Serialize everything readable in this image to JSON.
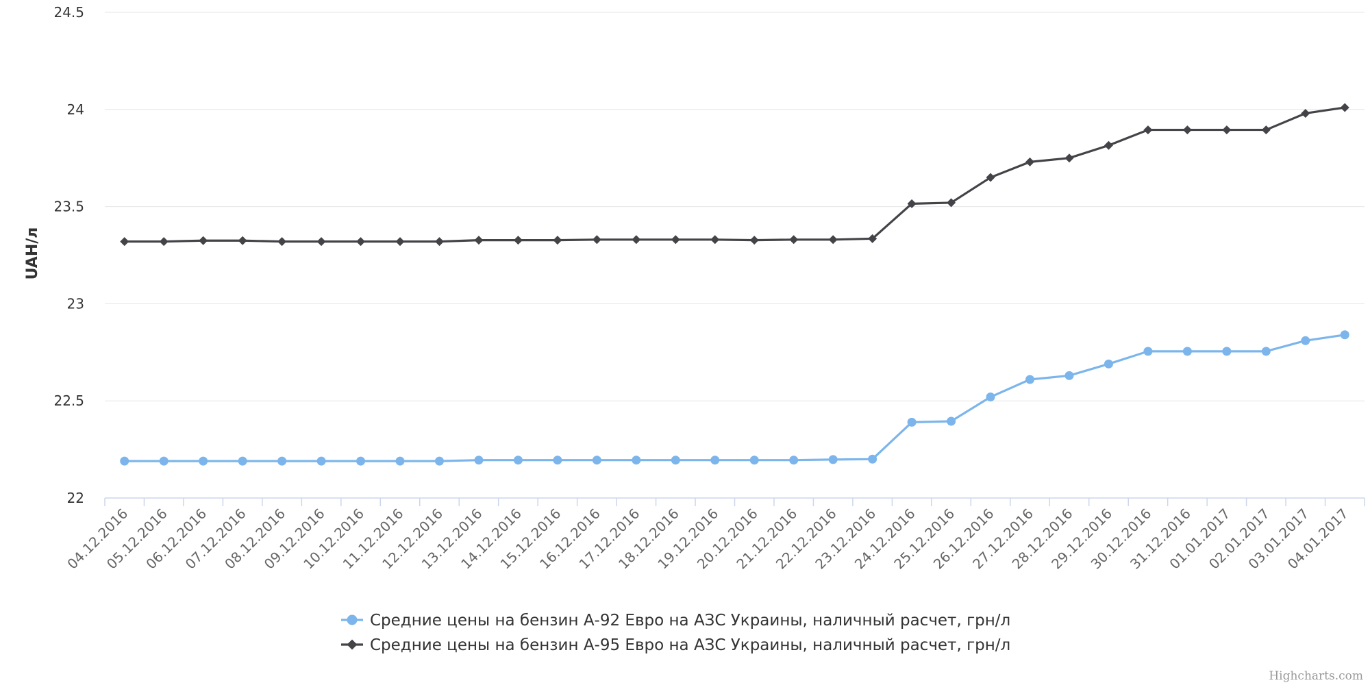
{
  "chart_data": {
    "type": "line",
    "title": "",
    "xlabel": "",
    "ylabel": "UAH/л",
    "ylim": [
      22,
      24.5
    ],
    "yticks": [
      "22",
      "22.5",
      "23",
      "23.5",
      "24",
      "24.5"
    ],
    "grid": true,
    "legend_position": "bottom-center",
    "categories": [
      "04.12.2016",
      "05.12.2016",
      "06.12.2016",
      "07.12.2016",
      "08.12.2016",
      "09.12.2016",
      "10.12.2016",
      "11.12.2016",
      "12.12.2016",
      "13.12.2016",
      "14.12.2016",
      "15.12.2016",
      "16.12.2016",
      "17.12.2016",
      "18.12.2016",
      "19.12.2016",
      "20.12.2016",
      "21.12.2016",
      "22.12.2016",
      "23.12.2016",
      "24.12.2016",
      "25.12.2016",
      "26.12.2016",
      "27.12.2016",
      "28.12.2016",
      "29.12.2016",
      "30.12.2016",
      "31.12.2016",
      "01.01.2017",
      "02.01.2017",
      "03.01.2017",
      "04.01.2017"
    ],
    "series": [
      {
        "name": "Средние цены на бензин А-92 Евро на АЗС Украины, наличный расчет, грн/л",
        "color": "#7cb5ec",
        "marker": "circle",
        "values": [
          22.19,
          22.19,
          22.19,
          22.19,
          22.19,
          22.19,
          22.19,
          22.19,
          22.19,
          22.195,
          22.195,
          22.195,
          22.195,
          22.195,
          22.195,
          22.195,
          22.195,
          22.195,
          22.198,
          22.2,
          22.39,
          22.395,
          22.52,
          22.61,
          22.63,
          22.69,
          22.755,
          22.755,
          22.755,
          22.755,
          22.81,
          22.84
        ]
      },
      {
        "name": "Средние цены на бензин А-95 Евро на АЗС Украины, наличный расчет, грн/л",
        "color": "#434348",
        "marker": "diamond",
        "values": [
          23.32,
          23.32,
          23.325,
          23.325,
          23.32,
          23.32,
          23.32,
          23.32,
          23.32,
          23.327,
          23.327,
          23.327,
          23.33,
          23.33,
          23.33,
          23.33,
          23.327,
          23.33,
          23.33,
          23.335,
          23.515,
          23.52,
          23.65,
          23.73,
          23.75,
          23.815,
          23.895,
          23.895,
          23.895,
          23.895,
          23.98,
          24.01
        ]
      }
    ]
  },
  "credits": "Highcharts.com"
}
